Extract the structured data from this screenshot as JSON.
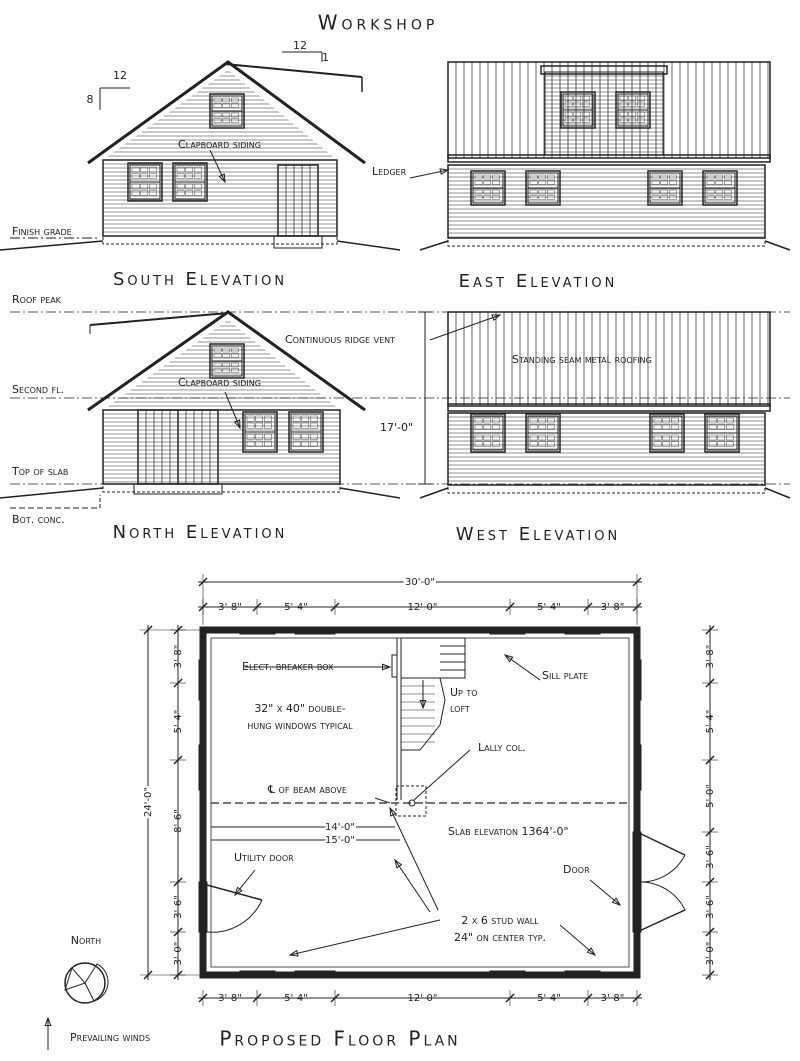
{
  "title": "Workshop",
  "slopes": {
    "top": {
      "run": "12",
      "rise": "1"
    },
    "left": {
      "run": "12",
      "rise": "8"
    }
  },
  "elevations": {
    "south": {
      "label": "South Elevation",
      "note": "Clapboard siding"
    },
    "east": {
      "label": "East Elevation",
      "note": "Ledger"
    },
    "north": {
      "label": "North Elevation",
      "note": "Clapboard siding"
    },
    "west": {
      "label": "West Elevation",
      "notes": [
        "Continuous ridge vent",
        "Standing seam metal roofing"
      ]
    }
  },
  "levels": {
    "finish_grade": "Finish grade",
    "roof_peak": "Roof peak",
    "second_floor": "Second fl.",
    "top_of_slab": "Top of slab",
    "bottom_concrete": "Bot. conc."
  },
  "height_dim": "17'-0\"",
  "floor_plan": {
    "label": "Proposed Floor Plan",
    "overall_width": "30'-0\"",
    "overall_depth": "24'-0\"",
    "top_dims": [
      "3'-8\"",
      "5'-4\"",
      "12'-0\"",
      "5'-4\"",
      "3'-8\""
    ],
    "bottom_dims": [
      "3'-8\"",
      "5'-4\"",
      "12'-0\"",
      "5'-4\"",
      "3'-8\""
    ],
    "left_dims": [
      "3'-8\"",
      "5'-4\"",
      "8'-6\"",
      "3'-6\"",
      "3'-0\""
    ],
    "right_dims": [
      "3'-8\"",
      "5'-4\"",
      "5'-0\"",
      "3'-6\"",
      "3'-6\"",
      "3'-0\""
    ],
    "notes": {
      "breaker": "Elect. breaker box",
      "loft": [
        "Up to",
        "loft"
      ],
      "windows": [
        "32\" x 40\" double-",
        "hung windows typical"
      ],
      "sill": "Sill plate",
      "lally": "Lally col.",
      "beam": "℄ of beam above",
      "dim14": "14'-0\"",
      "dim15": "15'-0\"",
      "slab": "Slab elevation 1364'-0\"",
      "utility_door": "Utility door",
      "door": "Door",
      "stud": [
        "2 x 6 stud wall",
        "24\" on center typ."
      ]
    },
    "north": "North",
    "winds": "Prevailing winds"
  }
}
